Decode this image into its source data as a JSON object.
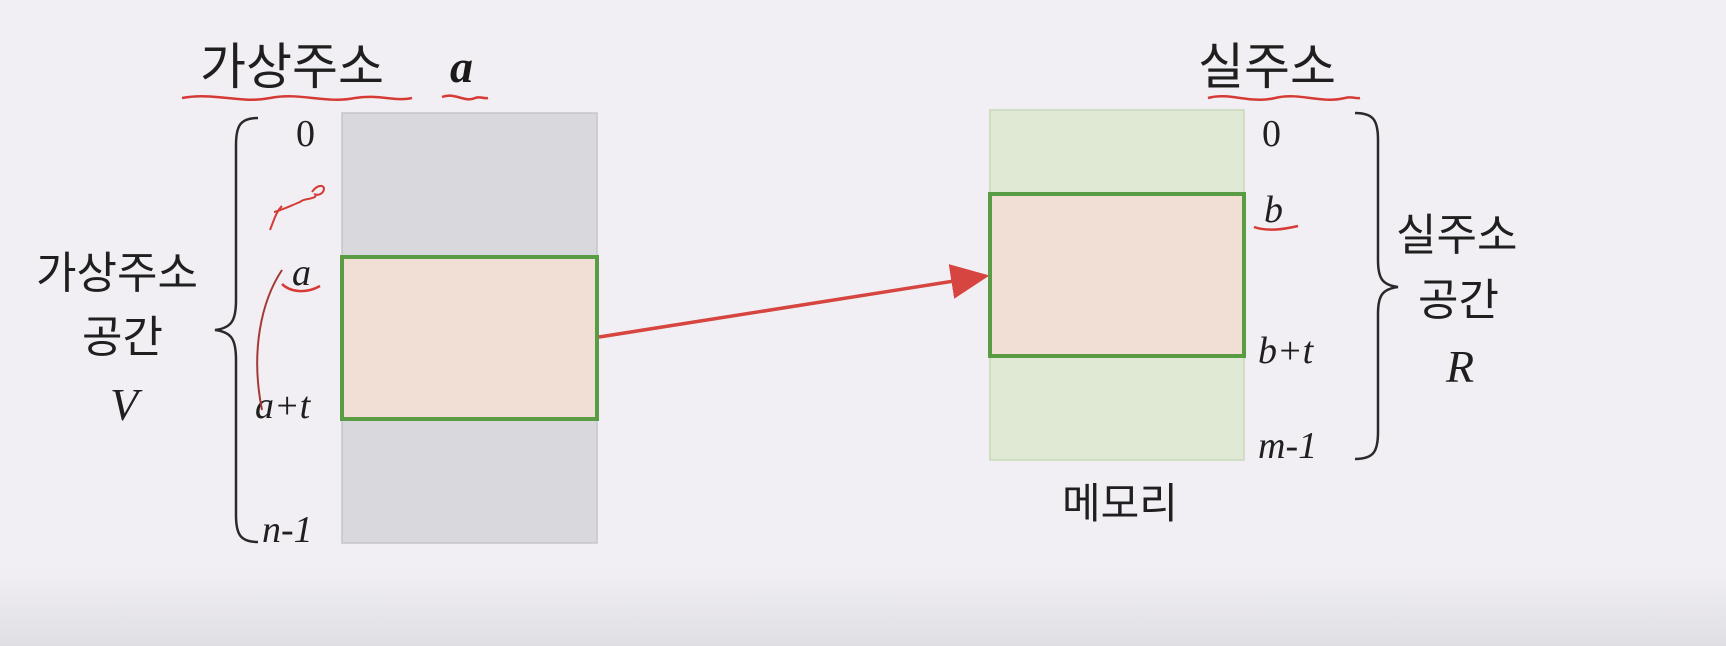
{
  "virtual": {
    "title": "가상주소",
    "title_var": "a",
    "space_line1": "가상주소",
    "space_line2": "공간",
    "space_symbol": "V",
    "tick_0": "0",
    "tick_a": "a",
    "tick_a_t": "a+t",
    "tick_n1": "n-1"
  },
  "real": {
    "title": "실주소",
    "space_line1": "실주소",
    "space_line2": "공간",
    "space_symbol": "R",
    "tick_0": "0",
    "tick_b": "b",
    "tick_b_t": "b+t",
    "tick_m1": "m-1",
    "memory_label": "메모리"
  },
  "colors": {
    "background": "#f1eff4",
    "virtual_block": "#d9d8dc",
    "memory_block": "#dfe9d3",
    "mapped_region": "#f1dfd6",
    "region_border": "#5a9c44",
    "arrow": "#d6453f",
    "annotation": "#d63a35"
  }
}
